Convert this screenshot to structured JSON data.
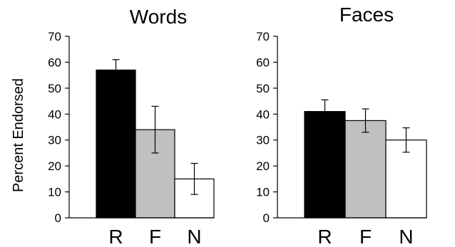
{
  "figure": {
    "ylabel": "Percent Endorsed"
  },
  "chart_data": [
    {
      "type": "bar",
      "title": "Words",
      "categories": [
        "R",
        "F",
        "N"
      ],
      "values": [
        57,
        34,
        15
      ],
      "error": [
        4,
        9,
        6
      ],
      "colors": [
        "#000000",
        "#c0c0c0",
        "#ffffff"
      ],
      "ylabel": "Percent Endorsed",
      "ylim": [
        0,
        70
      ],
      "yticks": [
        "0",
        "10",
        "20",
        "30",
        "40",
        "50",
        "60",
        "70"
      ]
    },
    {
      "type": "bar",
      "title": "Faces",
      "categories": [
        "R",
        "F",
        "N"
      ],
      "values": [
        41,
        37.5,
        30
      ],
      "error": [
        4.5,
        4.5,
        4.7
      ],
      "colors": [
        "#000000",
        "#c0c0c0",
        "#ffffff"
      ],
      "ylabel": "",
      "ylim": [
        0,
        70
      ],
      "yticks": [
        "0",
        "10",
        "20",
        "30",
        "40",
        "50",
        "60",
        "70"
      ]
    }
  ]
}
